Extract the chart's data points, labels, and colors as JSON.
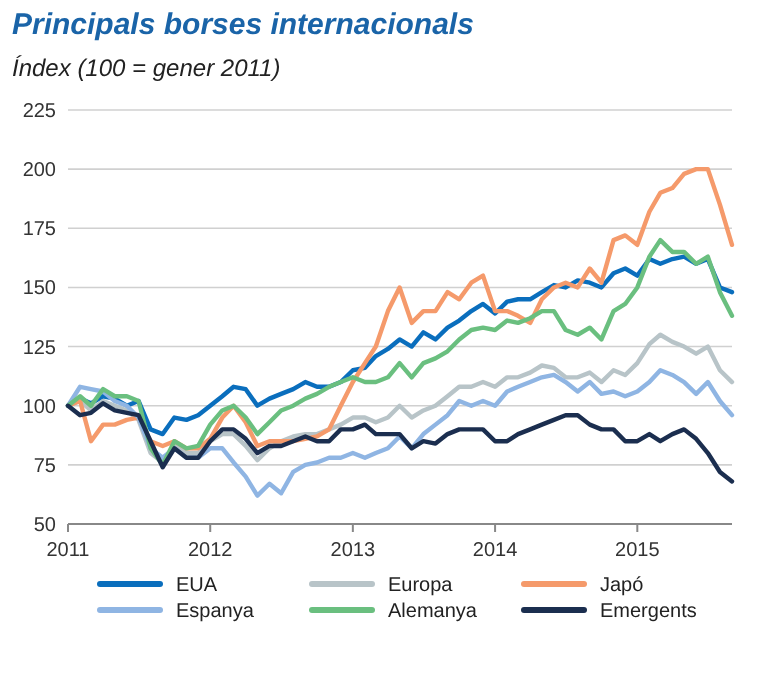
{
  "chart_data": {
    "type": "line",
    "title": "Principals borses internacionals",
    "subtitle": "Índex (100 = gener 2011)",
    "x": [
      "2011-01",
      "2011-02",
      "2011-03",
      "2011-04",
      "2011-05",
      "2011-06",
      "2011-07",
      "2011-08",
      "2011-09",
      "2011-10",
      "2011-11",
      "2011-12",
      "2012-01",
      "2012-02",
      "2012-03",
      "2012-04",
      "2012-05",
      "2012-06",
      "2012-07",
      "2012-08",
      "2012-09",
      "2012-10",
      "2012-11",
      "2012-12",
      "2013-01",
      "2013-02",
      "2013-03",
      "2013-04",
      "2013-05",
      "2013-06",
      "2013-07",
      "2013-08",
      "2013-09",
      "2013-10",
      "2013-11",
      "2013-12",
      "2014-01",
      "2014-02",
      "2014-03",
      "2014-04",
      "2014-05",
      "2014-06",
      "2014-07",
      "2014-08",
      "2014-09",
      "2014-10",
      "2014-11",
      "2014-12",
      "2015-01",
      "2015-02",
      "2015-03",
      "2015-04",
      "2015-05",
      "2015-06",
      "2015-07",
      "2015-08",
      "2015-09"
    ],
    "series": [
      {
        "name": "EUA",
        "color": "#0a6ebd",
        "values": [
          100,
          103,
          101,
          104,
          103,
          100,
          102,
          90,
          88,
          95,
          94,
          96,
          100,
          104,
          108,
          107,
          100,
          103,
          105,
          107,
          110,
          108,
          108,
          110,
          115,
          116,
          121,
          124,
          128,
          125,
          131,
          128,
          133,
          136,
          140,
          143,
          139,
          144,
          145,
          145,
          148,
          151,
          150,
          153,
          152,
          150,
          156,
          158,
          155,
          162,
          160,
          162,
          163,
          160,
          162,
          150,
          148
        ]
      },
      {
        "name": "Europa",
        "color": "#b8c4c8",
        "values": [
          100,
          102,
          98,
          102,
          100,
          98,
          94,
          80,
          76,
          83,
          80,
          80,
          85,
          88,
          88,
          83,
          77,
          82,
          85,
          87,
          88,
          88,
          90,
          92,
          95,
          95,
          93,
          95,
          100,
          95,
          98,
          100,
          104,
          108,
          108,
          110,
          108,
          112,
          112,
          114,
          117,
          116,
          112,
          112,
          114,
          110,
          115,
          113,
          118,
          126,
          130,
          127,
          125,
          122,
          125,
          115,
          110
        ]
      },
      {
        "name": "Japó",
        "color": "#f59a6b",
        "values": [
          100,
          102,
          85,
          92,
          92,
          94,
          95,
          85,
          83,
          85,
          82,
          82,
          86,
          95,
          100,
          93,
          83,
          85,
          85,
          85,
          86,
          87,
          90,
          100,
          110,
          118,
          125,
          140,
          150,
          135,
          140,
          140,
          148,
          145,
          152,
          155,
          140,
          140,
          138,
          135,
          145,
          150,
          152,
          150,
          158,
          152,
          170,
          172,
          168,
          182,
          190,
          192,
          198,
          200,
          200,
          185,
          168
        ]
      },
      {
        "name": "Espanya",
        "color": "#8fb5e3",
        "values": [
          100,
          108,
          107,
          106,
          102,
          100,
          95,
          82,
          78,
          82,
          78,
          78,
          82,
          82,
          76,
          70,
          62,
          67,
          63,
          72,
          75,
          76,
          78,
          78,
          80,
          78,
          80,
          82,
          87,
          82,
          88,
          92,
          96,
          102,
          100,
          102,
          100,
          106,
          108,
          110,
          112,
          113,
          110,
          106,
          110,
          105,
          106,
          104,
          106,
          110,
          115,
          113,
          110,
          105,
          110,
          102,
          96
        ]
      },
      {
        "name": "Alemanya",
        "color": "#6abf7f",
        "values": [
          100,
          104,
          100,
          107,
          104,
          104,
          102,
          82,
          75,
          85,
          82,
          83,
          92,
          98,
          100,
          95,
          88,
          93,
          98,
          100,
          103,
          105,
          108,
          110,
          112,
          110,
          110,
          112,
          118,
          112,
          118,
          120,
          123,
          128,
          132,
          133,
          132,
          136,
          135,
          137,
          140,
          140,
          132,
          130,
          133,
          128,
          140,
          143,
          150,
          163,
          170,
          165,
          165,
          160,
          163,
          148,
          138
        ]
      },
      {
        "name": "Emergents",
        "color": "#1b2e4f",
        "values": [
          100,
          96,
          97,
          101,
          98,
          97,
          96,
          85,
          74,
          82,
          78,
          78,
          85,
          90,
          90,
          86,
          80,
          83,
          83,
          85,
          87,
          85,
          85,
          90,
          90,
          92,
          88,
          88,
          88,
          82,
          85,
          84,
          88,
          90,
          90,
          90,
          85,
          85,
          88,
          90,
          92,
          94,
          96,
          96,
          92,
          90,
          90,
          85,
          85,
          88,
          85,
          88,
          90,
          86,
          80,
          72,
          68
        ]
      }
    ],
    "xlim": [
      "2011-01",
      "2015-09"
    ],
    "xticks": [
      "2011",
      "2012",
      "2013",
      "2014",
      "2015"
    ],
    "ylim": [
      50,
      225
    ],
    "yticks": [
      50,
      75,
      100,
      125,
      150,
      175,
      200,
      225
    ],
    "grid": "y",
    "legend": "bottom",
    "line_style": "solid"
  }
}
